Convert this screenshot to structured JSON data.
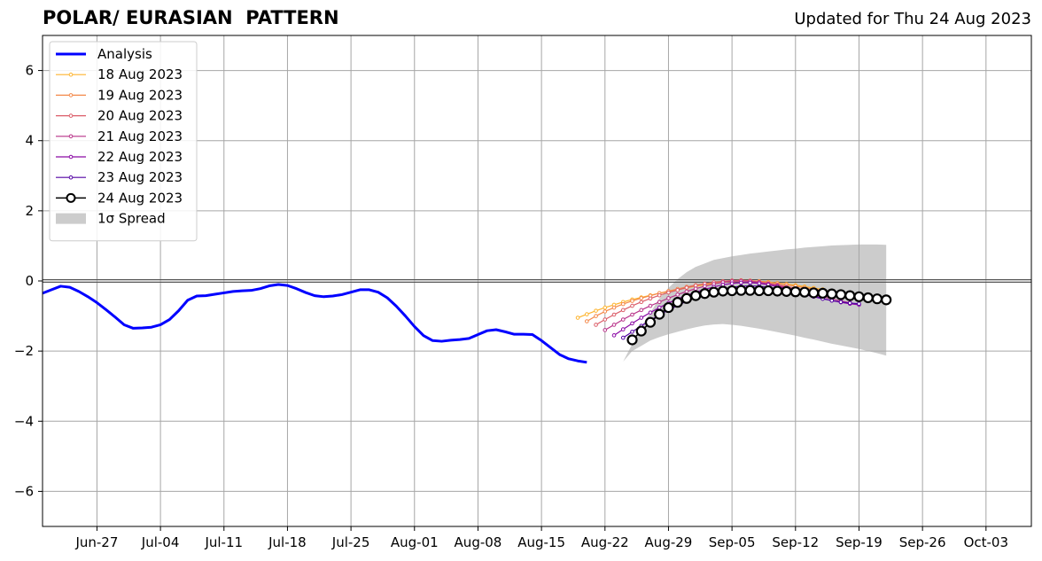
{
  "chart_data": {
    "type": "line",
    "title": "POLAR/ EURASIAN  PATTERN",
    "subtitle": "Updated for Thu 24 Aug 2023",
    "xlabel": "",
    "ylabel": "",
    "x_range": [
      "2023-06-21",
      "2023-10-08"
    ],
    "ylim": [
      -7,
      7
    ],
    "grid": true,
    "legend_position": "top-left",
    "x_ticks": [
      {
        "date": "2023-06-27",
        "label": "Jun-27"
      },
      {
        "date": "2023-07-04",
        "label": "Jul-04"
      },
      {
        "date": "2023-07-11",
        "label": "Jul-11"
      },
      {
        "date": "2023-07-18",
        "label": "Jul-18"
      },
      {
        "date": "2023-07-25",
        "label": "Jul-25"
      },
      {
        "date": "2023-08-01",
        "label": "Aug-01"
      },
      {
        "date": "2023-08-08",
        "label": "Aug-08"
      },
      {
        "date": "2023-08-15",
        "label": "Aug-15"
      },
      {
        "date": "2023-08-22",
        "label": "Aug-22"
      },
      {
        "date": "2023-08-29",
        "label": "Aug-29"
      },
      {
        "date": "2023-09-05",
        "label": "Sep-05"
      },
      {
        "date": "2023-09-12",
        "label": "Sep-12"
      },
      {
        "date": "2023-09-19",
        "label": "Sep-19"
      },
      {
        "date": "2023-09-26",
        "label": "Sep-26"
      },
      {
        "date": "2023-10-03",
        "label": "Oct-03"
      }
    ],
    "y_ticks": [
      {
        "value": 6,
        "label": "6"
      },
      {
        "value": 4,
        "label": "4"
      },
      {
        "value": 2,
        "label": "2"
      },
      {
        "value": 0,
        "label": "0"
      },
      {
        "value": -2,
        "label": "−2"
      },
      {
        "value": -4,
        "label": "−4"
      },
      {
        "value": -6,
        "label": "−6"
      }
    ],
    "analysis": {
      "name": "Analysis",
      "color": "#0000ff",
      "start_date": "2023-06-21",
      "values": [
        -0.35,
        -0.25,
        -0.15,
        -0.18,
        -0.3,
        -0.45,
        -0.62,
        -0.82,
        -1.03,
        -1.25,
        -1.35,
        -1.34,
        -1.32,
        -1.25,
        -1.1,
        -0.85,
        -0.55,
        -0.43,
        -0.42,
        -0.38,
        -0.34,
        -0.3,
        -0.28,
        -0.27,
        -0.22,
        -0.14,
        -0.1,
        -0.13,
        -0.22,
        -0.33,
        -0.42,
        -0.45,
        -0.43,
        -0.39,
        -0.32,
        -0.25,
        -0.25,
        -0.32,
        -0.48,
        -0.72,
        -1.0,
        -1.3,
        -1.56,
        -1.7,
        -1.72,
        -1.69,
        -1.67,
        -1.64,
        -1.53,
        -1.42,
        -1.39,
        -1.45,
        -1.52,
        -1.52,
        -1.53,
        -1.7,
        -1.9,
        -2.1,
        -2.22,
        -2.28,
        -2.32
      ]
    },
    "forecasts": [
      {
        "name": "18 Aug 2023",
        "color": "#fdb42f",
        "start_date": "2023-08-19",
        "values": [
          -1.05,
          -0.95,
          -0.85,
          -0.76,
          -0.68,
          -0.6,
          -0.53,
          -0.47,
          -0.41,
          -0.35,
          -0.3,
          -0.25,
          -0.2,
          -0.15,
          -0.11,
          -0.07,
          -0.04,
          -0.02,
          0.0,
          0.0,
          -0.01,
          -0.03,
          -0.06,
          -0.09,
          -0.12,
          -0.16,
          -0.2,
          -0.24
        ]
      },
      {
        "name": "19 Aug 2023",
        "color": "#f48849",
        "start_date": "2023-08-20",
        "values": [
          -1.15,
          -1.0,
          -0.87,
          -0.76,
          -0.66,
          -0.57,
          -0.49,
          -0.42,
          -0.35,
          -0.29,
          -0.23,
          -0.17,
          -0.12,
          -0.08,
          -0.04,
          -0.01,
          0.01,
          0.02,
          0.01,
          -0.01,
          -0.04,
          -0.07,
          -0.11,
          -0.15,
          -0.19,
          -0.23,
          -0.27,
          -0.31
        ]
      },
      {
        "name": "20 Aug 2023",
        "color": "#db5c68",
        "start_date": "2023-08-21",
        "values": [
          -1.25,
          -1.1,
          -0.96,
          -0.83,
          -0.71,
          -0.6,
          -0.5,
          -0.41,
          -0.33,
          -0.26,
          -0.19,
          -0.13,
          -0.08,
          -0.04,
          -0.01,
          0.01,
          0.01,
          0.0,
          -0.03,
          -0.07,
          -0.11,
          -0.16,
          -0.21,
          -0.26,
          -0.31,
          -0.36,
          -0.41,
          -0.46
        ]
      },
      {
        "name": "21 Aug 2023",
        "color": "#b83289",
        "start_date": "2023-08-22",
        "values": [
          -1.4,
          -1.25,
          -1.1,
          -0.96,
          -0.83,
          -0.71,
          -0.6,
          -0.49,
          -0.39,
          -0.3,
          -0.22,
          -0.15,
          -0.09,
          -0.04,
          -0.01,
          0.0,
          -0.01,
          -0.04,
          -0.08,
          -0.13,
          -0.19,
          -0.25,
          -0.31,
          -0.38,
          -0.45,
          -0.51,
          -0.57,
          -0.62
        ]
      },
      {
        "name": "22 Aug 2023",
        "color": "#8b0aa5",
        "start_date": "2023-08-23",
        "values": [
          -1.55,
          -1.38,
          -1.21,
          -1.05,
          -0.9,
          -0.76,
          -0.63,
          -0.51,
          -0.41,
          -0.32,
          -0.24,
          -0.17,
          -0.11,
          -0.07,
          -0.05,
          -0.05,
          -0.07,
          -0.11,
          -0.16,
          -0.22,
          -0.29,
          -0.36,
          -0.43,
          -0.5,
          -0.56,
          -0.61,
          -0.65,
          -0.68
        ]
      },
      {
        "name": "23 Aug 2023",
        "color": "#5302a3",
        "start_date": "2023-08-24",
        "values": [
          -1.62,
          -1.45,
          -1.28,
          -1.12,
          -0.97,
          -0.83,
          -0.7,
          -0.58,
          -0.47,
          -0.38,
          -0.3,
          -0.23,
          -0.18,
          -0.15,
          -0.14,
          -0.15,
          -0.18,
          -0.22,
          -0.27,
          -0.33,
          -0.39,
          -0.45,
          -0.51,
          -0.56,
          -0.6,
          -0.63,
          -0.65
        ]
      },
      {
        "name": "24 Aug 2023",
        "color": "#000000",
        "start_date": "2023-08-25",
        "markers": "open-circle",
        "values": [
          -1.68,
          -1.43,
          -1.18,
          -0.95,
          -0.76,
          -0.61,
          -0.5,
          -0.42,
          -0.36,
          -0.32,
          -0.29,
          -0.28,
          -0.27,
          -0.27,
          -0.28,
          -0.28,
          -0.29,
          -0.3,
          -0.31,
          -0.32,
          -0.34,
          -0.35,
          -0.37,
          -0.39,
          -0.42,
          -0.45,
          -0.48,
          -0.51,
          -0.54
        ]
      }
    ],
    "spread": {
      "name": "1σ Spread",
      "color": "#cccccc",
      "start_date": "2023-08-24",
      "upper": [
        -2.3,
        -1.8,
        -1.3,
        -0.9,
        -0.5,
        -0.2,
        0.05,
        0.25,
        0.4,
        0.5,
        0.6,
        0.65,
        0.7,
        0.74,
        0.78,
        0.81,
        0.84,
        0.87,
        0.9,
        0.92,
        0.95,
        0.97,
        0.99,
        1.01,
        1.02,
        1.03,
        1.04,
        1.04,
        1.04,
        1.03
      ],
      "lower": [
        -2.3,
        -2.0,
        -1.85,
        -1.7,
        -1.6,
        -1.52,
        -1.45,
        -1.38,
        -1.32,
        -1.27,
        -1.24,
        -1.23,
        -1.25,
        -1.28,
        -1.32,
        -1.36,
        -1.41,
        -1.46,
        -1.51,
        -1.56,
        -1.62,
        -1.67,
        -1.73,
        -1.79,
        -1.84,
        -1.89,
        -1.94,
        -2.0,
        -2.06,
        -2.13
      ]
    }
  }
}
